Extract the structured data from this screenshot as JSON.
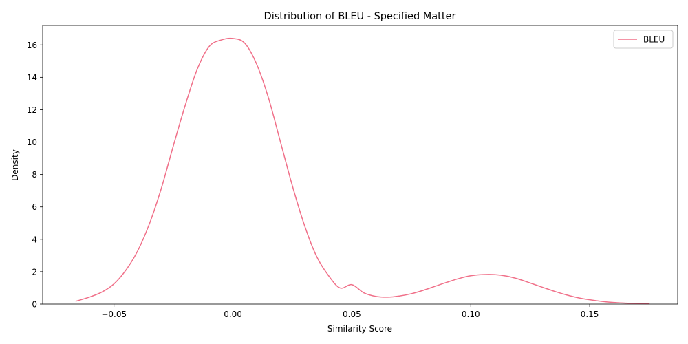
{
  "chart_data": {
    "type": "line",
    "title": "Distribution of BLEU - Specified Matter",
    "xlabel": "Similarity Score",
    "ylabel": "Density",
    "xlim": [
      -0.08,
      0.187
    ],
    "ylim": [
      0,
      17.2
    ],
    "x_ticks": [
      -0.05,
      0.0,
      0.05,
      0.1,
      0.15
    ],
    "x_tick_labels": [
      "−0.05",
      "0.00",
      "0.05",
      "0.10",
      "0.15"
    ],
    "y_ticks": [
      0,
      2,
      4,
      6,
      8,
      10,
      12,
      14,
      16
    ],
    "y_tick_labels": [
      "0",
      "2",
      "4",
      "6",
      "8",
      "10",
      "12",
      "14",
      "16"
    ],
    "grid": false,
    "legend": {
      "position": "top-right",
      "entries": [
        "BLEU"
      ]
    },
    "series": [
      {
        "name": "BLEU",
        "color": "#f07089",
        "x": [
          -0.066,
          -0.06,
          -0.055,
          -0.05,
          -0.045,
          -0.04,
          -0.035,
          -0.03,
          -0.025,
          -0.02,
          -0.015,
          -0.01,
          -0.005,
          0.0,
          0.005,
          0.01,
          0.015,
          0.02,
          0.025,
          0.03,
          0.035,
          0.04,
          0.045,
          0.05,
          0.055,
          0.06,
          0.065,
          0.07,
          0.075,
          0.08,
          0.085,
          0.09,
          0.095,
          0.1,
          0.105,
          0.11,
          0.115,
          0.12,
          0.125,
          0.13,
          0.135,
          0.14,
          0.145,
          0.15,
          0.155,
          0.16,
          0.165,
          0.17,
          0.175
        ],
        "y": [
          0.18,
          0.45,
          0.75,
          1.25,
          2.1,
          3.3,
          5.0,
          7.2,
          9.8,
          12.3,
          14.5,
          15.9,
          16.3,
          16.4,
          16.1,
          14.8,
          12.7,
          10.0,
          7.3,
          4.9,
          3.0,
          1.8,
          1.0,
          1.2,
          0.7,
          0.48,
          0.43,
          0.5,
          0.64,
          0.85,
          1.1,
          1.35,
          1.58,
          1.75,
          1.82,
          1.82,
          1.73,
          1.55,
          1.3,
          1.05,
          0.8,
          0.58,
          0.4,
          0.27,
          0.17,
          0.1,
          0.06,
          0.03,
          0.02
        ]
      }
    ]
  }
}
